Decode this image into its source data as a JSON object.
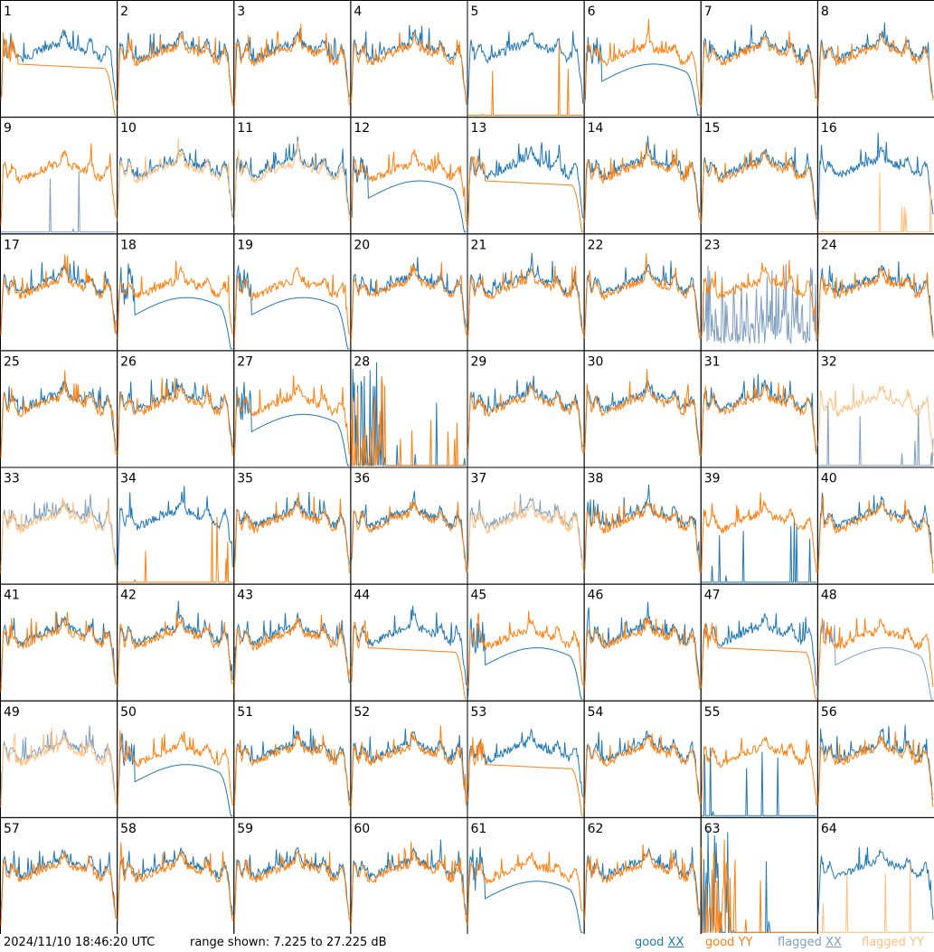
{
  "footer": {
    "timestamp": "2024/11/10 18:46:20 UTC",
    "range_text": "range shown: 7.225 to 27.225 dB"
  },
  "legend": [
    {
      "label": "good XX",
      "color": "#1f77b4"
    },
    {
      "label": "good YY",
      "color": "#ff7f0e"
    },
    {
      "label": "flagged XX",
      "color": "#7f9fbf"
    },
    {
      "label": "flagged YY",
      "color": "#ffbf7f"
    }
  ],
  "chart_data": {
    "type": "line",
    "grid": {
      "rows": 8,
      "cols": 8
    },
    "ylim": [
      7.225,
      27.225
    ],
    "panels": [
      {
        "label": "1",
        "xx": "good",
        "yy": "good",
        "shape": "yy_dropoff"
      },
      {
        "label": "2",
        "xx": "good",
        "yy": "good",
        "shape": "normal"
      },
      {
        "label": "3",
        "xx": "good",
        "yy": "good",
        "shape": "normal"
      },
      {
        "label": "4",
        "xx": "good",
        "yy": "good",
        "shape": "normal"
      },
      {
        "label": "5",
        "xx": "good",
        "yy": "good",
        "shape": "yy_dead"
      },
      {
        "label": "6",
        "xx": "good",
        "yy": "good",
        "shape": "xx_dropoff"
      },
      {
        "label": "7",
        "xx": "good",
        "yy": "good",
        "shape": "normal"
      },
      {
        "label": "8",
        "xx": "good",
        "yy": "good",
        "shape": "normal"
      },
      {
        "label": "9",
        "xx": "flagged",
        "yy": "good",
        "shape": "xx_dead"
      },
      {
        "label": "10",
        "xx": "good",
        "yy": "flagged",
        "shape": "normal"
      },
      {
        "label": "11",
        "xx": "good",
        "yy": "flagged",
        "shape": "normal"
      },
      {
        "label": "12",
        "xx": "good",
        "yy": "good",
        "shape": "xx_dropoff"
      },
      {
        "label": "13",
        "xx": "good",
        "yy": "good",
        "shape": "yy_dropoff"
      },
      {
        "label": "14",
        "xx": "good",
        "yy": "good",
        "shape": "normal"
      },
      {
        "label": "15",
        "xx": "good",
        "yy": "good",
        "shape": "normal"
      },
      {
        "label": "16",
        "xx": "good",
        "yy": "flagged",
        "shape": "yy_dead"
      },
      {
        "label": "17",
        "xx": "good",
        "yy": "good",
        "shape": "normal"
      },
      {
        "label": "18",
        "xx": "good",
        "yy": "good",
        "shape": "xx_dropoff"
      },
      {
        "label": "19",
        "xx": "good",
        "yy": "good",
        "shape": "xx_dropoff"
      },
      {
        "label": "20",
        "xx": "good",
        "yy": "good",
        "shape": "normal"
      },
      {
        "label": "21",
        "xx": "good",
        "yy": "good",
        "shape": "normal"
      },
      {
        "label": "22",
        "xx": "good",
        "yy": "good",
        "shape": "normal"
      },
      {
        "label": "23",
        "xx": "flagged",
        "yy": "good",
        "shape": "xx_noisy"
      },
      {
        "label": "24",
        "xx": "good",
        "yy": "good",
        "shape": "normal"
      },
      {
        "label": "25",
        "xx": "good",
        "yy": "good",
        "shape": "normal"
      },
      {
        "label": "26",
        "xx": "good",
        "yy": "good",
        "shape": "normal"
      },
      {
        "label": "27",
        "xx": "good",
        "yy": "good",
        "shape": "xx_dropoff"
      },
      {
        "label": "28",
        "xx": "good",
        "yy": "good",
        "shape": "both_dead_yy"
      },
      {
        "label": "29",
        "xx": "good",
        "yy": "good",
        "shape": "normal"
      },
      {
        "label": "30",
        "xx": "good",
        "yy": "good",
        "shape": "normal"
      },
      {
        "label": "31",
        "xx": "good",
        "yy": "good",
        "shape": "normal"
      },
      {
        "label": "32",
        "xx": "flagged",
        "yy": "flagged",
        "shape": "xx_dead"
      },
      {
        "label": "33",
        "xx": "flagged",
        "yy": "flagged",
        "shape": "normal"
      },
      {
        "label": "34",
        "xx": "good",
        "yy": "good",
        "shape": "yy_dead"
      },
      {
        "label": "35",
        "xx": "good",
        "yy": "good",
        "shape": "normal"
      },
      {
        "label": "36",
        "xx": "good",
        "yy": "good",
        "shape": "normal"
      },
      {
        "label": "37",
        "xx": "flagged",
        "yy": "flagged",
        "shape": "normal"
      },
      {
        "label": "38",
        "xx": "good",
        "yy": "good",
        "shape": "normal"
      },
      {
        "label": "39",
        "xx": "good",
        "yy": "good",
        "shape": "xx_dead"
      },
      {
        "label": "40",
        "xx": "good",
        "yy": "good",
        "shape": "normal"
      },
      {
        "label": "41",
        "xx": "good",
        "yy": "good",
        "shape": "normal"
      },
      {
        "label": "42",
        "xx": "good",
        "yy": "good",
        "shape": "normal"
      },
      {
        "label": "43",
        "xx": "good",
        "yy": "good",
        "shape": "normal"
      },
      {
        "label": "44",
        "xx": "good",
        "yy": "good",
        "shape": "yy_dropoff"
      },
      {
        "label": "45",
        "xx": "good",
        "yy": "good",
        "shape": "xx_dropoff"
      },
      {
        "label": "46",
        "xx": "good",
        "yy": "good",
        "shape": "normal"
      },
      {
        "label": "47",
        "xx": "good",
        "yy": "good",
        "shape": "yy_dropoff"
      },
      {
        "label": "48",
        "xx": "flagged",
        "yy": "good",
        "shape": "xx_dropoff"
      },
      {
        "label": "49",
        "xx": "flagged",
        "yy": "flagged",
        "shape": "normal"
      },
      {
        "label": "50",
        "xx": "good",
        "yy": "good",
        "shape": "xx_dropoff"
      },
      {
        "label": "51",
        "xx": "good",
        "yy": "good",
        "shape": "normal"
      },
      {
        "label": "52",
        "xx": "good",
        "yy": "good",
        "shape": "normal"
      },
      {
        "label": "53",
        "xx": "good",
        "yy": "good",
        "shape": "yy_dropoff"
      },
      {
        "label": "54",
        "xx": "good",
        "yy": "good",
        "shape": "normal"
      },
      {
        "label": "55",
        "xx": "good",
        "yy": "good",
        "shape": "xx_dead"
      },
      {
        "label": "56",
        "xx": "good",
        "yy": "good",
        "shape": "normal"
      },
      {
        "label": "57",
        "xx": "good",
        "yy": "good",
        "shape": "normal"
      },
      {
        "label": "58",
        "xx": "good",
        "yy": "good",
        "shape": "normal"
      },
      {
        "label": "59",
        "xx": "good",
        "yy": "good",
        "shape": "normal"
      },
      {
        "label": "60",
        "xx": "good",
        "yy": "good",
        "shape": "normal"
      },
      {
        "label": "61",
        "xx": "good",
        "yy": "good",
        "shape": "xx_dropoff"
      },
      {
        "label": "62",
        "xx": "good",
        "yy": "good",
        "shape": "normal"
      },
      {
        "label": "63",
        "xx": "good",
        "yy": "good",
        "shape": "both_dead_yy"
      },
      {
        "label": "64",
        "xx": "good",
        "yy": "flagged",
        "shape": "yy_dead"
      }
    ]
  }
}
